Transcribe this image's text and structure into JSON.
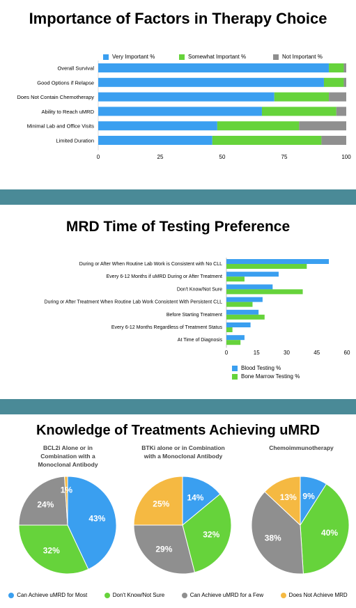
{
  "colors": {
    "blue": "#3a9ff0",
    "green": "#66d33b",
    "gray": "#8f8f8f",
    "orange": "#f5b942",
    "divider": "#4a8a97"
  },
  "chart_data": [
    {
      "type": "bar",
      "orientation": "horizontal-stacked",
      "title": "Importance of Factors in Therapy Choice",
      "categories": [
        "Overall Survival",
        "Good Options if Relapse",
        "Does Not Contain Chemotherapy",
        "Ability to Reach uMRD",
        "Minimal Lab and Office Visits",
        "Limited Duration"
      ],
      "series": [
        {
          "name": "Very Important %",
          "values": [
            93,
            91,
            71,
            66,
            48,
            46
          ],
          "color": "#3a9ff0"
        },
        {
          "name": "Somewhat Important %",
          "values": [
            6,
            8,
            22,
            30,
            33,
            44
          ],
          "color": "#66d33b"
        },
        {
          "name": "Not Important %",
          "values": [
            1,
            1,
            7,
            4,
            19,
            10
          ],
          "color": "#8f8f8f"
        }
      ],
      "xticks": [
        "0",
        "25",
        "50",
        "75",
        "100"
      ],
      "xlim": [
        0,
        100
      ],
      "legend_position": "top"
    },
    {
      "type": "bar",
      "orientation": "horizontal-grouped",
      "title": "MRD Time of Testing Preference",
      "categories": [
        "During or After When Routine Lab Work is Consistent with No CLL",
        "Every 6-12 Months if uMRD During or After Treatment",
        "Don't Know/Not Sure",
        "During or After Treatment When Routine Lab Work Consistent With Persistent CLL",
        "Before Starting Treatment",
        "Every 6-12 Months Regardless of Treatment Status",
        "At Time of Diagnosis"
      ],
      "series": [
        {
          "name": "Blood Testing %",
          "values": [
            51,
            26,
            23,
            18,
            16,
            12,
            9
          ],
          "color": "#3a9ff0"
        },
        {
          "name": "Bone Marrow Testing %",
          "values": [
            40,
            9,
            38,
            13,
            19,
            3,
            7
          ],
          "color": "#66d33b"
        }
      ],
      "xticks": [
        "0",
        "15",
        "30",
        "45",
        "60"
      ],
      "xlim": [
        0,
        60
      ],
      "legend_position": "bottom"
    },
    {
      "type": "pie",
      "title": "Knowledge of Treatments Achieving uMRD",
      "legend": [
        {
          "name": "Can Achieve uMRD for Most",
          "color": "#3a9ff0"
        },
        {
          "name": "Don't Know/Not Sure",
          "color": "#66d33b"
        },
        {
          "name": "Can Achieve uMRD for a Few",
          "color": "#8f8f8f"
        },
        {
          "name": "Does Not Achieve MRD",
          "color": "#f5b942"
        }
      ],
      "pies": [
        {
          "title_lines": [
            "BCL2i Alone or in",
            "Combination with a",
            "Monoclonal Antibody"
          ],
          "values": [
            43,
            32,
            24,
            1
          ],
          "labels": [
            "43%",
            "32%",
            "24%",
            "1%"
          ]
        },
        {
          "title_lines": [
            "BTKi alone or in Combination",
            "with a Monoclonal Antibody"
          ],
          "values": [
            14,
            32,
            29,
            25
          ],
          "labels": [
            "14%",
            "32%",
            "29%",
            "25%"
          ]
        },
        {
          "title_lines": [
            "Chemoimmunotherapy"
          ],
          "values": [
            9,
            40,
            38,
            13
          ],
          "labels": [
            "9%",
            "40%",
            "38%",
            "13%"
          ]
        }
      ]
    }
  ]
}
